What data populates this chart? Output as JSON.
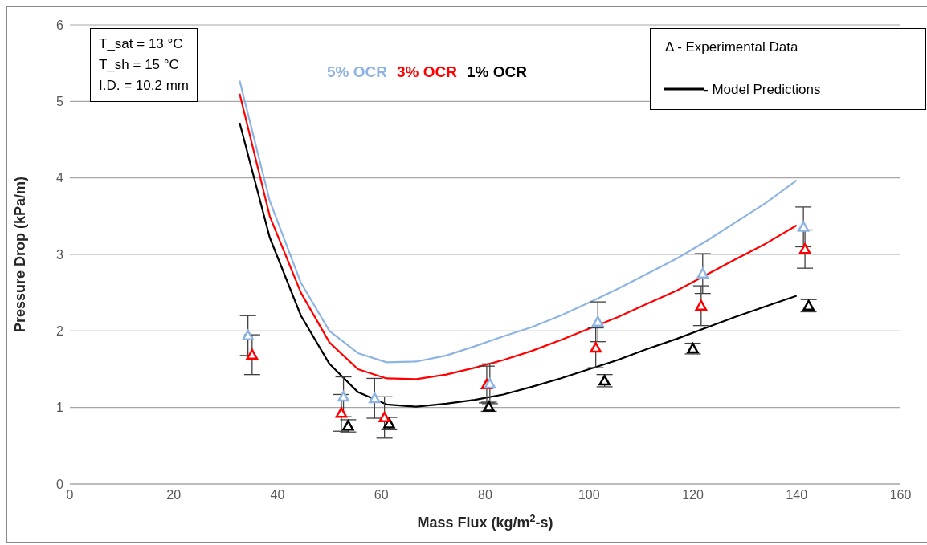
{
  "chart_data": {
    "type": "line",
    "xlabel": "Mass Flux (kg/m$^{2}$-s)",
    "ylabel": "Pressure Drop (kPa/m)",
    "xlim": [
      0,
      160
    ],
    "xticks": [
      0,
      20,
      40,
      60,
      80,
      100,
      120,
      140,
      160
    ],
    "ylim": [
      0,
      6
    ],
    "yticks": [
      0,
      1,
      2,
      3,
      4,
      5,
      6
    ],
    "grid": "y",
    "legend": "top",
    "line_style": "solid",
    "annotations": [
      "T_sat = 13 °C",
      "T_sh = 15 °C",
      "I.D. = 10.2 mm",
      "Δ - Experimental Data",
      "-  Model Predictions"
    ],
    "series": [
      {
        "name": "5% OCR",
        "color": "#8db4e2",
        "marker": "none",
        "x": [
          32.7,
          38.5,
          44.5,
          50,
          55.5,
          61,
          66.7,
          72.5,
          78,
          83.5,
          89,
          94.5,
          100,
          105.5,
          111,
          117,
          122.5,
          128,
          134,
          140
        ],
        "values": [
          5.27,
          3.7,
          2.63,
          2.0,
          1.71,
          1.59,
          1.6,
          1.68,
          1.8,
          1.93,
          2.05,
          2.2,
          2.37,
          2.55,
          2.74,
          2.95,
          3.17,
          3.41,
          3.67,
          3.97
        ]
      },
      {
        "name": "3% OCR",
        "color": "#ff0000",
        "marker": "none",
        "x": [
          32.7,
          38.5,
          44.5,
          50,
          55.5,
          61,
          66.7,
          72.5,
          78,
          83.5,
          89,
          94.5,
          100,
          105.5,
          111,
          117,
          122.5,
          128,
          134,
          140
        ],
        "values": [
          5.1,
          3.5,
          2.5,
          1.85,
          1.5,
          1.38,
          1.37,
          1.43,
          1.52,
          1.62,
          1.74,
          1.88,
          2.03,
          2.18,
          2.35,
          2.53,
          2.73,
          2.93,
          3.14,
          3.38
        ]
      },
      {
        "name": "1% OCR",
        "color": "#000000",
        "marker": "none",
        "x": [
          32.7,
          38.5,
          44.5,
          50,
          55.5,
          61,
          66.7,
          72.5,
          78,
          83.5,
          89,
          94.5,
          100,
          105.5,
          111,
          117,
          122.5,
          128,
          134,
          140
        ],
        "values": [
          4.72,
          3.22,
          2.2,
          1.57,
          1.2,
          1.04,
          1.01,
          1.05,
          1.1,
          1.17,
          1.27,
          1.38,
          1.5,
          1.62,
          1.76,
          1.9,
          2.04,
          2.18,
          2.32,
          2.46
        ]
      },
      {
        "type": "scatter",
        "color": "#8db4e2",
        "marker": "triangle",
        "x": [
          34.3,
          52.7,
          58.7,
          80.9,
          101.7,
          121.9,
          141.3
        ],
        "values": [
          1.94,
          1.14,
          1.12,
          1.31,
          2.12,
          2.75,
          3.36
        ],
        "errors": [
          0.26,
          0.26,
          0.26,
          0.26,
          0.26,
          0.26,
          0.26
        ]
      },
      {
        "type": "scatter",
        "color": "#ff0000",
        "marker": "triangle",
        "x": [
          35.1,
          52.3,
          60.6,
          80.3,
          101.3,
          121.6,
          141.6
        ],
        "values": [
          1.69,
          0.93,
          0.87,
          1.3,
          1.78,
          2.33,
          3.07
        ],
        "errors": [
          0.26,
          0.24,
          0.27,
          0.24,
          0.26,
          0.26,
          0.25
        ]
      },
      {
        "type": "scatter",
        "color": "#000000",
        "marker": "triangle",
        "x": [
          53.6,
          61.5,
          80.7,
          103,
          120,
          142.3
        ],
        "values": [
          0.76,
          0.79,
          1.01,
          1.35,
          1.77,
          2.33
        ],
        "errors": [
          0.08,
          0.08,
          0.06,
          0.08,
          0.07,
          0.08
        ]
      }
    ]
  }
}
